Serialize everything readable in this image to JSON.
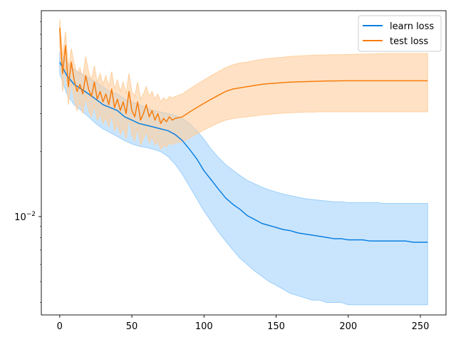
{
  "chart_data": {
    "type": "line",
    "title": "",
    "xlabel": "",
    "ylabel": "",
    "xlim": [
      -12.75,
      267.75
    ],
    "ylim": [
      0.0035,
      0.09
    ],
    "yscale": "log",
    "grid": false,
    "legend_position": "top-right",
    "x_ticks": [
      0,
      50,
      100,
      150,
      200,
      250
    ],
    "x_tick_labels": [
      "0",
      "50",
      "100",
      "150",
      "200",
      "250"
    ],
    "y_major_ticks": [
      0.01
    ],
    "y_major_labels": [
      {
        "base": "10",
        "exp": "−2"
      }
    ],
    "y_minor_ticks": [
      0.004,
      0.005,
      0.006,
      0.007,
      0.008,
      0.009,
      0.02,
      0.03,
      0.04,
      0.05,
      0.06,
      0.07,
      0.08
    ],
    "series": [
      {
        "name": "learn loss",
        "color": "#0c7fe0",
        "band_color": "#9ccffb",
        "x": [
          0,
          5,
          10,
          15,
          20,
          25,
          30,
          35,
          40,
          45,
          50,
          55,
          60,
          65,
          70,
          75,
          80,
          85,
          90,
          95,
          100,
          105,
          110,
          115,
          120,
          125,
          130,
          135,
          140,
          145,
          150,
          155,
          160,
          165,
          170,
          175,
          180,
          185,
          190,
          195,
          200,
          205,
          210,
          215,
          220,
          225,
          230,
          235,
          240,
          245,
          250,
          255
        ],
        "y": [
          0.052,
          0.045,
          0.041,
          0.039,
          0.037,
          0.035,
          0.033,
          0.032,
          0.031,
          0.029,
          0.028,
          0.027,
          0.0265,
          0.026,
          0.0255,
          0.025,
          0.024,
          0.0225,
          0.0205,
          0.0185,
          0.0163,
          0.0148,
          0.0134,
          0.0122,
          0.0114,
          0.0108,
          0.0101,
          0.0097,
          0.0093,
          0.0091,
          0.0089,
          0.0087,
          0.0086,
          0.0084,
          0.0083,
          0.0082,
          0.0081,
          0.008,
          0.0079,
          0.0079,
          0.0078,
          0.0078,
          0.0078,
          0.0077,
          0.0077,
          0.0077,
          0.0077,
          0.0077,
          0.0077,
          0.0076,
          0.0076,
          0.0076
        ],
        "lower": [
          0.046,
          0.037,
          0.033,
          0.031,
          0.029,
          0.027,
          0.0255,
          0.0245,
          0.0235,
          0.0225,
          0.0217,
          0.0212,
          0.0209,
          0.0205,
          0.02,
          0.019,
          0.0175,
          0.0157,
          0.0138,
          0.0121,
          0.0106,
          0.0095,
          0.0085,
          0.0077,
          0.007,
          0.0064,
          0.006,
          0.0056,
          0.0053,
          0.005,
          0.0048,
          0.0046,
          0.0044,
          0.0043,
          0.0042,
          0.0041,
          0.0041,
          0.004,
          0.004,
          0.004,
          0.0039,
          0.0039,
          0.0039,
          0.0039,
          0.0039,
          0.0039,
          0.0039,
          0.0039,
          0.0039,
          0.0039,
          0.0039,
          0.0039
        ],
        "upper": [
          0.058,
          0.052,
          0.048,
          0.046,
          0.044,
          0.042,
          0.04,
          0.038,
          0.037,
          0.035,
          0.034,
          0.033,
          0.032,
          0.031,
          0.0305,
          0.03,
          0.0295,
          0.0285,
          0.027,
          0.025,
          0.0228,
          0.0205,
          0.0188,
          0.0174,
          0.0164,
          0.0155,
          0.0147,
          0.0142,
          0.0137,
          0.0133,
          0.013,
          0.0127,
          0.0125,
          0.0123,
          0.0121,
          0.012,
          0.0119,
          0.0118,
          0.0117,
          0.0117,
          0.0116,
          0.0116,
          0.0116,
          0.0116,
          0.0116,
          0.0115,
          0.0115,
          0.0115,
          0.0115,
          0.0115,
          0.0115,
          0.0115
        ]
      },
      {
        "name": "test loss",
        "color": "#f77c0c",
        "band_color": "#ffcf9e",
        "x": [
          0,
          2,
          4,
          6,
          8,
          10,
          12,
          14,
          16,
          18,
          20,
          22,
          24,
          26,
          28,
          30,
          32,
          34,
          36,
          38,
          40,
          42,
          44,
          46,
          48,
          50,
          52,
          54,
          56,
          58,
          60,
          62,
          64,
          66,
          68,
          70,
          72,
          74,
          76,
          78,
          80,
          85,
          90,
          95,
          100,
          105,
          110,
          115,
          120,
          125,
          130,
          135,
          140,
          145,
          150,
          155,
          160,
          165,
          170,
          175,
          180,
          185,
          190,
          195,
          200,
          205,
          210,
          215,
          220,
          225,
          230,
          235,
          240,
          245,
          250,
          255
        ],
        "y": [
          0.075,
          0.046,
          0.062,
          0.04,
          0.052,
          0.043,
          0.038,
          0.041,
          0.037,
          0.045,
          0.039,
          0.036,
          0.042,
          0.035,
          0.038,
          0.034,
          0.037,
          0.033,
          0.039,
          0.032,
          0.035,
          0.031,
          0.034,
          0.03,
          0.038,
          0.031,
          0.029,
          0.034,
          0.028,
          0.03,
          0.033,
          0.029,
          0.031,
          0.028,
          0.03,
          0.027,
          0.0285,
          0.0275,
          0.029,
          0.028,
          0.0285,
          0.029,
          0.0305,
          0.032,
          0.0335,
          0.035,
          0.0365,
          0.038,
          0.039,
          0.0395,
          0.04,
          0.0405,
          0.041,
          0.0413,
          0.0415,
          0.0418,
          0.042,
          0.0421,
          0.0422,
          0.0423,
          0.0424,
          0.0425,
          0.0425,
          0.0426,
          0.0426,
          0.0426,
          0.0426,
          0.0426,
          0.0426,
          0.0426,
          0.0426,
          0.0426,
          0.0426,
          0.0426,
          0.0426,
          0.0426
        ],
        "lower": [
          0.062,
          0.038,
          0.05,
          0.033,
          0.042,
          0.035,
          0.031,
          0.034,
          0.03,
          0.036,
          0.031,
          0.029,
          0.033,
          0.028,
          0.03,
          0.027,
          0.029,
          0.026,
          0.03,
          0.025,
          0.027,
          0.024,
          0.026,
          0.023,
          0.029,
          0.024,
          0.0225,
          0.026,
          0.0215,
          0.023,
          0.025,
          0.022,
          0.0235,
          0.0215,
          0.0225,
          0.0205,
          0.0215,
          0.021,
          0.022,
          0.0215,
          0.022,
          0.0222,
          0.0232,
          0.0242,
          0.0252,
          0.0262,
          0.0272,
          0.028,
          0.0285,
          0.0288,
          0.029,
          0.0293,
          0.0296,
          0.0298,
          0.03,
          0.0302,
          0.0303,
          0.0304,
          0.0305,
          0.0305,
          0.0306,
          0.0306,
          0.0306,
          0.0306,
          0.0306,
          0.0306,
          0.0306,
          0.0306,
          0.0306,
          0.0306,
          0.0306,
          0.0306,
          0.0306,
          0.0306,
          0.0306,
          0.0306
        ],
        "upper": [
          0.082,
          0.055,
          0.072,
          0.048,
          0.06,
          0.051,
          0.046,
          0.049,
          0.044,
          0.055,
          0.047,
          0.043,
          0.05,
          0.042,
          0.046,
          0.041,
          0.045,
          0.04,
          0.047,
          0.039,
          0.043,
          0.038,
          0.042,
          0.037,
          0.046,
          0.038,
          0.036,
          0.042,
          0.035,
          0.037,
          0.04,
          0.036,
          0.038,
          0.035,
          0.037,
          0.034,
          0.0355,
          0.0345,
          0.036,
          0.0355,
          0.036,
          0.037,
          0.039,
          0.041,
          0.043,
          0.045,
          0.047,
          0.049,
          0.0505,
          0.0515,
          0.052,
          0.0528,
          0.0535,
          0.054,
          0.0544,
          0.0548,
          0.0552,
          0.0555,
          0.0557,
          0.0559,
          0.056,
          0.0561,
          0.0562,
          0.0563,
          0.0564,
          0.0565,
          0.0566,
          0.0567,
          0.0568,
          0.0569,
          0.057,
          0.057,
          0.057,
          0.057,
          0.057,
          0.057
        ]
      }
    ]
  }
}
